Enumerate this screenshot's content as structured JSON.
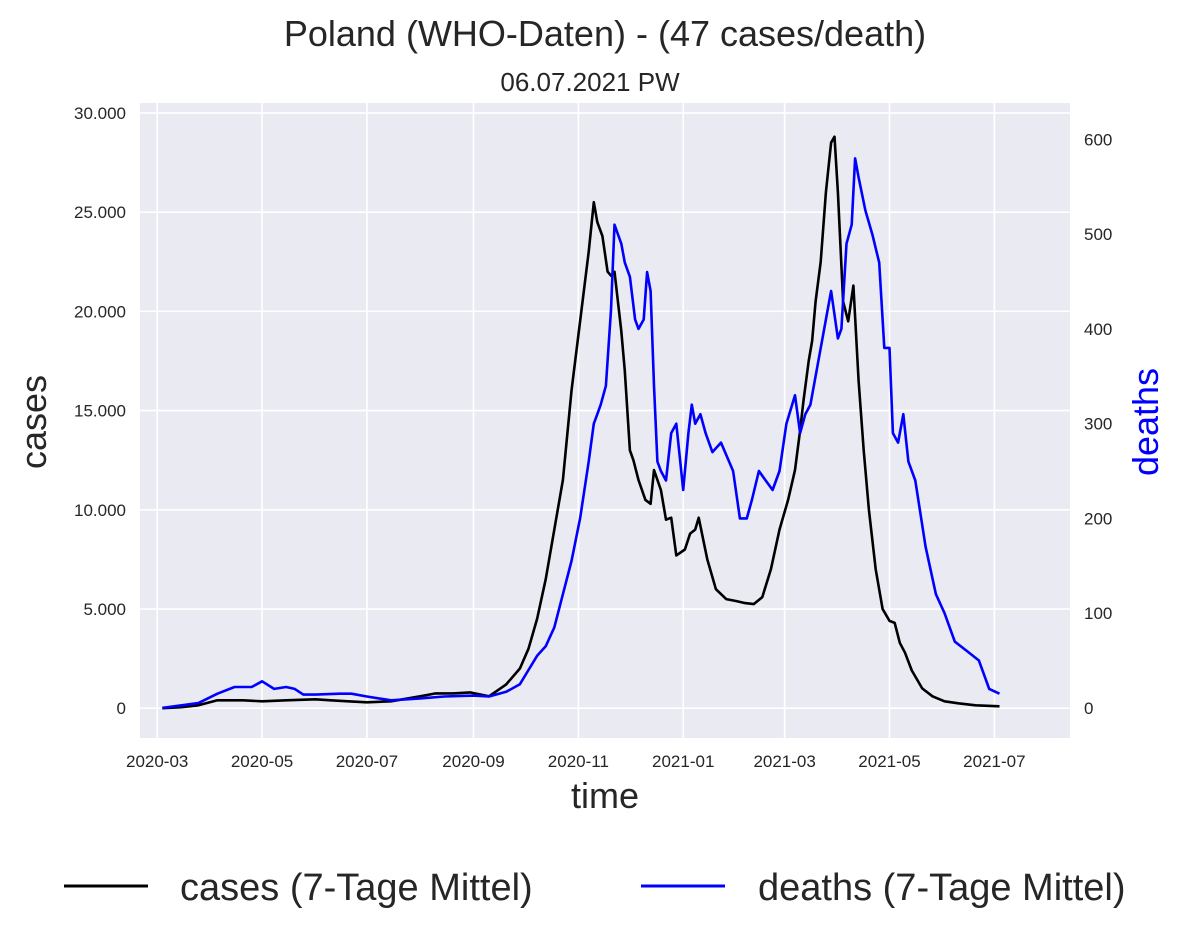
{
  "chart_data": {
    "type": "line",
    "title": "Poland (WHO-Daten) - (47 cases/death)",
    "subtitle": "06.07.2021 PW",
    "xlabel": "time",
    "ylabel": "cases",
    "y2label": "deaths",
    "x_ticks": [
      "2020-03",
      "2020-05",
      "2020-07",
      "2020-09",
      "2020-11",
      "2021-01",
      "2021-03",
      "2021-05",
      "2021-07"
    ],
    "y_ticks": [
      "0",
      "5.000",
      "10.000",
      "15.000",
      "20.000",
      "25.000",
      "30.000"
    ],
    "y2_ticks": [
      "0",
      "100",
      "200",
      "300",
      "400",
      "500",
      "600"
    ],
    "ylim": [
      -1500,
      30500
    ],
    "y2lim": [
      -31.8,
      638.5
    ],
    "grid": true,
    "legend_position": "bottom",
    "colors": {
      "cases": "#000000",
      "deaths": "#0000ff",
      "plot_bg": "#eaeaf2",
      "grid": "#ffffff"
    },
    "series": [
      {
        "name": "cases (7-Tage Mittel)",
        "axis": "left",
        "x": [
          "2020-03-04",
          "2020-03-15",
          "2020-03-25",
          "2020-04-05",
          "2020-04-20",
          "2020-05-01",
          "2020-05-15",
          "2020-06-01",
          "2020-06-10",
          "2020-06-20",
          "2020-07-01",
          "2020-07-15",
          "2020-08-01",
          "2020-08-10",
          "2020-08-20",
          "2020-08-30",
          "2020-09-10",
          "2020-09-20",
          "2020-09-28",
          "2020-10-03",
          "2020-10-08",
          "2020-10-13",
          "2020-10-18",
          "2020-10-23",
          "2020-10-28",
          "2020-11-02",
          "2020-11-07",
          "2020-11-10",
          "2020-11-12",
          "2020-11-15",
          "2020-11-18",
          "2020-11-20",
          "2020-11-22",
          "2020-11-24",
          "2020-11-26",
          "2020-11-28",
          "2020-12-01",
          "2020-12-03",
          "2020-12-06",
          "2020-12-10",
          "2020-12-13",
          "2020-12-15",
          "2020-12-19",
          "2020-12-22",
          "2020-12-25",
          "2020-12-28",
          "2021-01-02",
          "2021-01-05",
          "2021-01-08",
          "2021-01-10",
          "2021-01-15",
          "2021-01-20",
          "2021-01-26",
          "2021-02-01",
          "2021-02-06",
          "2021-02-11",
          "2021-02-16",
          "2021-02-21",
          "2021-02-26",
          "2021-03-03",
          "2021-03-07",
          "2021-03-10",
          "2021-03-12",
          "2021-03-15",
          "2021-03-17",
          "2021-03-19",
          "2021-03-22",
          "2021-03-25",
          "2021-03-28",
          "2021-03-30",
          "2021-04-01",
          "2021-04-04",
          "2021-04-07",
          "2021-04-10",
          "2021-04-13",
          "2021-04-16",
          "2021-04-19",
          "2021-04-23",
          "2021-04-27",
          "2021-05-01",
          "2021-05-04",
          "2021-05-07",
          "2021-05-10",
          "2021-05-14",
          "2021-05-20",
          "2021-05-26",
          "2021-06-02",
          "2021-06-10",
          "2021-06-20",
          "2021-07-04"
        ],
        "values": [
          0,
          50,
          150,
          400,
          400,
          350,
          400,
          450,
          400,
          350,
          300,
          350,
          600,
          750,
          750,
          800,
          600,
          1200,
          2000,
          3000,
          4500,
          6500,
          9000,
          11500,
          16000,
          19500,
          23000,
          25500,
          24500,
          23800,
          22000,
          21800,
          22000,
          20500,
          19000,
          17000,
          13000,
          12500,
          11500,
          10500,
          10300,
          12000,
          11000,
          9500,
          9600,
          7700,
          8000,
          8800,
          9000,
          9600,
          7500,
          6000,
          5500,
          5400,
          5300,
          5250,
          5600,
          7000,
          9000,
          10500,
          12000,
          14000,
          15500,
          17500,
          18500,
          20500,
          22500,
          26000,
          28500,
          28800,
          26000,
          20500,
          19500,
          21300,
          16500,
          13000,
          10000,
          7000,
          5000,
          4400,
          4300,
          3300,
          2800,
          1900,
          1000,
          600,
          350,
          250,
          150,
          100
        ]
      },
      {
        "name": "deaths (7-Tage Mittel)",
        "axis": "right",
        "x": [
          "2020-03-04",
          "2020-03-25",
          "2020-04-05",
          "2020-04-15",
          "2020-04-25",
          "2020-05-01",
          "2020-05-08",
          "2020-05-15",
          "2020-05-20",
          "2020-05-25",
          "2020-06-01",
          "2020-06-15",
          "2020-06-22",
          "2020-07-01",
          "2020-07-15",
          "2020-08-01",
          "2020-08-15",
          "2020-09-01",
          "2020-09-10",
          "2020-09-20",
          "2020-09-28",
          "2020-10-03",
          "2020-10-08",
          "2020-10-13",
          "2020-10-18",
          "2020-10-23",
          "2020-10-28",
          "2020-11-02",
          "2020-11-07",
          "2020-11-10",
          "2020-11-12",
          "2020-11-14",
          "2020-11-17",
          "2020-11-20",
          "2020-11-22",
          "2020-11-24",
          "2020-11-26",
          "2020-11-28",
          "2020-12-01",
          "2020-12-04",
          "2020-12-06",
          "2020-12-09",
          "2020-12-11",
          "2020-12-13",
          "2020-12-15",
          "2020-12-17",
          "2020-12-19",
          "2020-12-22",
          "2020-12-25",
          "2020-12-28",
          "2021-01-01",
          "2021-01-04",
          "2021-01-06",
          "2021-01-08",
          "2021-01-11",
          "2021-01-14",
          "2021-01-18",
          "2021-01-23",
          "2021-01-30",
          "2021-02-03",
          "2021-02-07",
          "2021-02-10",
          "2021-02-14",
          "2021-02-18",
          "2021-02-22",
          "2021-02-26",
          "2021-03-02",
          "2021-03-07",
          "2021-03-10",
          "2021-03-13",
          "2021-03-16",
          "2021-03-20",
          "2021-03-24",
          "2021-03-28",
          "2021-04-01",
          "2021-04-03",
          "2021-04-06",
          "2021-04-09",
          "2021-04-11",
          "2021-04-13",
          "2021-04-17",
          "2021-04-21",
          "2021-04-25",
          "2021-04-28",
          "2021-05-01",
          "2021-05-03",
          "2021-05-06",
          "2021-05-09",
          "2021-05-12",
          "2021-05-16",
          "2021-05-22",
          "2021-05-28",
          "2021-06-02",
          "2021-06-08",
          "2021-06-15",
          "2021-06-22",
          "2021-06-28",
          "2021-07-04"
        ],
        "values": [
          0,
          5,
          15,
          22,
          22,
          28,
          20,
          22,
          20,
          14,
          14,
          15,
          15,
          12,
          8,
          10,
          12,
          13,
          12,
          17,
          25,
          40,
          55,
          65,
          85,
          120,
          155,
          200,
          260,
          300,
          310,
          320,
          340,
          420,
          510,
          500,
          490,
          470,
          455,
          410,
          400,
          410,
          460,
          440,
          340,
          260,
          250,
          240,
          290,
          300,
          230,
          290,
          320,
          300,
          310,
          290,
          270,
          280,
          250,
          200,
          200,
          220,
          250,
          240,
          230,
          250,
          300,
          330,
          290,
          310,
          320,
          360,
          400,
          440,
          390,
          400,
          490,
          510,
          580,
          560,
          525,
          500,
          470,
          380,
          380,
          290,
          280,
          310,
          260,
          240,
          170,
          120,
          100,
          70,
          60,
          50,
          20,
          15
        ]
      }
    ]
  }
}
